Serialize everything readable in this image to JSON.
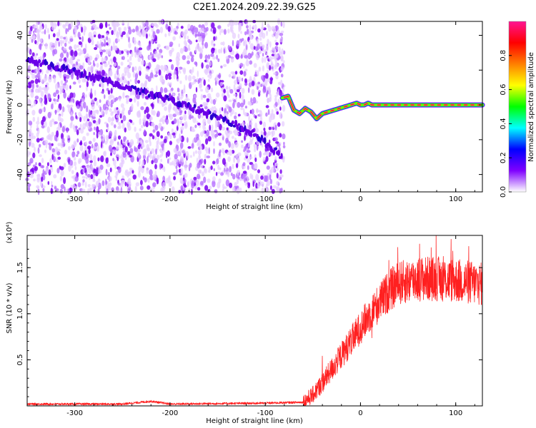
{
  "figure": {
    "title": "C2E1.2024.209.22.39.G25"
  },
  "chart_data": [
    {
      "type": "heatmap",
      "title": "",
      "xlabel": "Height of straight line (km)",
      "ylabel": "Frequency (Hz)",
      "xlim": [
        -350,
        128
      ],
      "ylim": [
        -50,
        48
      ],
      "xticks": [
        -300,
        -200,
        -100,
        0,
        100
      ],
      "xtick_labels": [
        "-300",
        "-200",
        "-100",
        "0",
        "100"
      ],
      "yticks": [
        -40,
        -20,
        0,
        20,
        40
      ],
      "ytick_labels": [
        "-40",
        "-20",
        "0",
        "20",
        "40"
      ],
      "noise_region_x": [
        -350,
        -80
      ],
      "noise_amplitude_range": [
        0.0,
        0.3
      ],
      "tracks": [
        {
          "x": [
            -350,
            -300,
            -250,
            -200,
            -150,
            -110,
            -82
          ],
          "y": [
            26,
            19,
            11,
            3,
            -7,
            -17,
            -30
          ],
          "amplitude": 0.2
        },
        {
          "x": [
            -82,
            -76,
            -70,
            -64,
            -58,
            -52,
            -46,
            -40,
            -34,
            -28,
            -22,
            -16,
            -10,
            -4,
            0,
            4,
            8,
            12,
            20,
            40,
            60,
            80,
            100,
            128
          ],
          "y": [
            4,
            5,
            -3,
            -5,
            -2,
            -4,
            -8,
            -5,
            -4,
            -3,
            -2,
            -1,
            0,
            1,
            0,
            0,
            1,
            0,
            0,
            0,
            0,
            0,
            0,
            0
          ],
          "amplitude": 0.95
        }
      ],
      "colorbar": {
        "label": "Normalized spectral amplitude",
        "range": [
          0,
          1
        ],
        "ticks": [
          0.0,
          0.2,
          0.4,
          0.6,
          0.8
        ],
        "tick_labels": [
          "0.0",
          "0.2",
          "0.4",
          "0.6",
          "0.8"
        ],
        "colors": [
          "#ffffff",
          "#7f00ff",
          "#0000ff",
          "#00ffff",
          "#00ff00",
          "#ffff00",
          "#ff7f00",
          "#ff0000",
          "#ff1493"
        ]
      }
    },
    {
      "type": "line",
      "title": "",
      "xlabel": "Height of straight line (km)",
      "ylabel": "SNR (10 * v/v)",
      "scale_label": "(x10⁴)",
      "xlim": [
        -350,
        128
      ],
      "ylim": [
        0,
        1.85
      ],
      "xticks": [
        -300,
        -200,
        -100,
        0,
        100
      ],
      "xtick_labels": [
        "-300",
        "-200",
        "-100",
        "0",
        "100"
      ],
      "yticks": [
        0.5,
        1.0,
        1.5
      ],
      "ytick_labels": [
        "0.5",
        "1.0",
        "1.5"
      ],
      "color": "#ff2020",
      "series": [
        {
          "trend_x": [
            -350,
            -250,
            -220,
            -200,
            -100,
            -60,
            -50,
            -40,
            -30,
            -20,
            -10,
            0,
            10,
            20,
            30,
            40,
            60,
            80,
            100,
            128
          ],
          "trend_y": [
            0.02,
            0.02,
            0.05,
            0.02,
            0.03,
            0.04,
            0.12,
            0.25,
            0.4,
            0.55,
            0.7,
            0.85,
            1.0,
            1.12,
            1.25,
            1.33,
            1.38,
            1.38,
            1.36,
            1.32
          ]
        }
      ]
    }
  ]
}
